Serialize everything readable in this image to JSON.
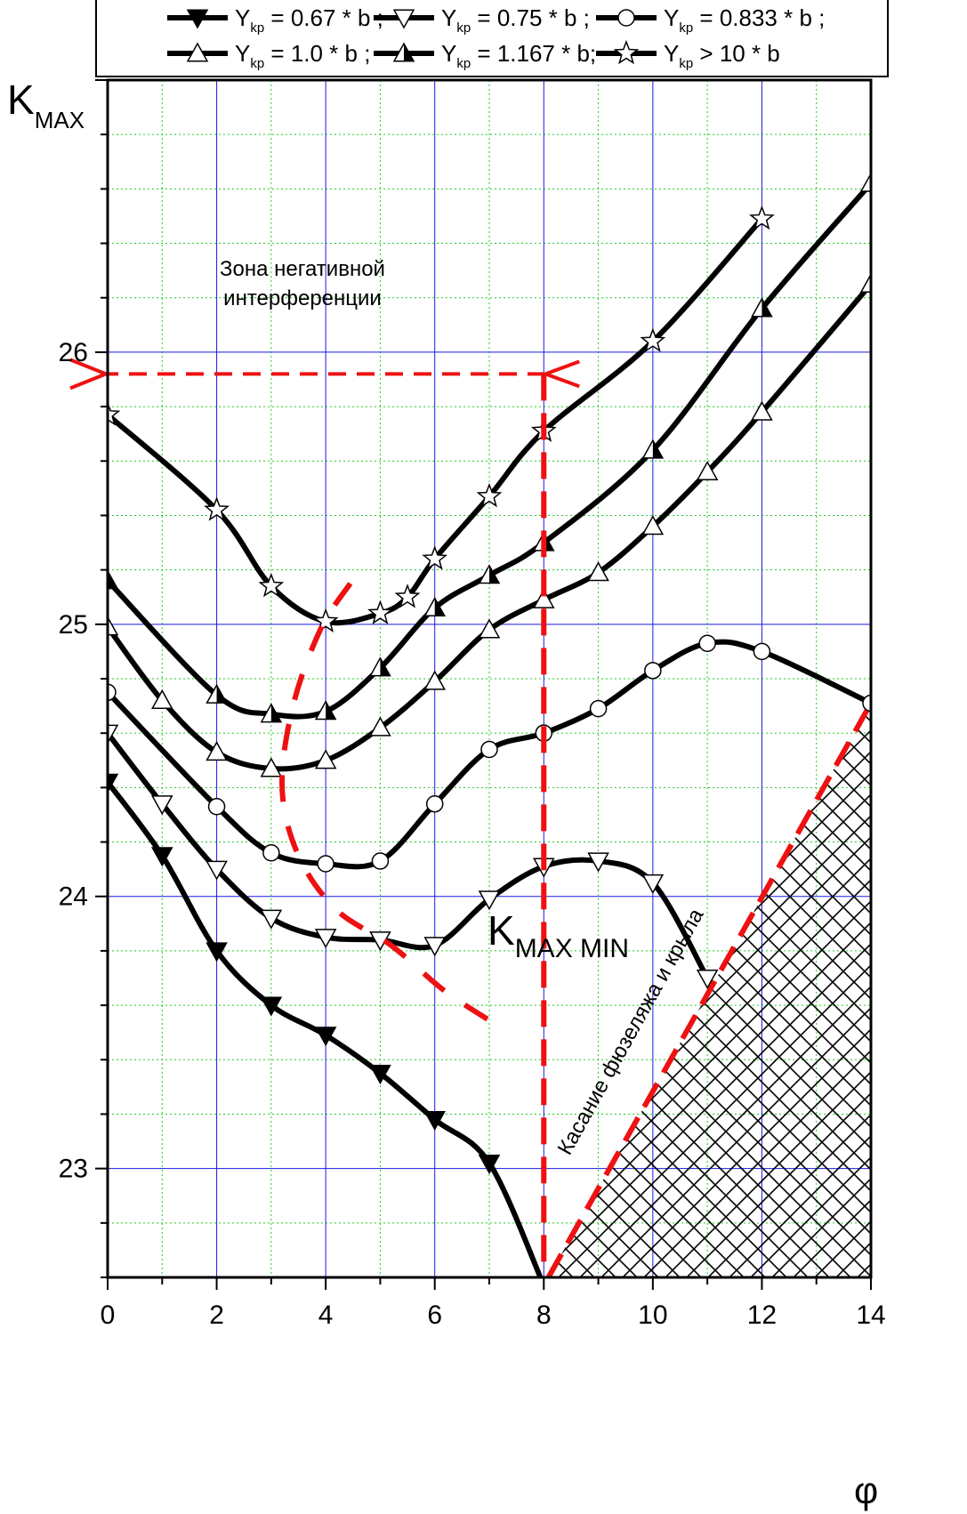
{
  "chart_data": {
    "type": "line",
    "ylabel": "K",
    "ylabel_sub": "MAX",
    "xlabel": "φ",
    "xlim": [
      0,
      14
    ],
    "ylim": [
      22.6,
      27.0
    ],
    "x_ticks": [
      0,
      2,
      4,
      6,
      8,
      10,
      12,
      14
    ],
    "x_tick_labels": [
      "0",
      "2",
      "4",
      "6",
      "8",
      "10",
      "12",
      "14"
    ],
    "y_ticks": [
      23,
      24,
      25,
      26
    ],
    "y_tick_labels": [
      "23",
      "24",
      "25",
      "26"
    ],
    "grid": true,
    "legend_position": "top",
    "series": [
      {
        "name_pre": "Y",
        "name_sub": "kp",
        "name_post": " = 0.67 * b ;",
        "marker": "tri-down-filled",
        "x": [
          0,
          1,
          2,
          3,
          4,
          5,
          6,
          7,
          8
        ],
        "y": [
          24.42,
          24.15,
          23.8,
          23.6,
          23.49,
          23.35,
          23.18,
          23.02,
          22.57
        ]
      },
      {
        "name_pre": "Y",
        "name_sub": "kp",
        "name_post": " = 0.75 * b ;",
        "marker": "tri-down-open",
        "x": [
          0,
          1,
          2,
          3,
          4,
          5,
          6,
          7,
          8,
          9,
          10,
          11
        ],
        "y": [
          24.6,
          24.34,
          24.1,
          23.92,
          23.85,
          23.84,
          23.82,
          23.99,
          24.11,
          24.13,
          24.05,
          23.7
        ]
      },
      {
        "name_pre": "Y",
        "name_sub": "kp",
        "name_post": " = 0.833 * b ;",
        "marker": "circle-open",
        "x": [
          0,
          2,
          3,
          4,
          5,
          6,
          7,
          8,
          9,
          10,
          11,
          12,
          14
        ],
        "y": [
          24.75,
          24.33,
          24.16,
          24.12,
          24.13,
          24.34,
          24.54,
          24.6,
          24.69,
          24.83,
          24.93,
          24.9,
          24.71
        ]
      },
      {
        "name_pre": "Y",
        "name_sub": "kp",
        "name_post": " = 1.0 * b ;",
        "marker": "tri-up-open",
        "x": [
          0,
          1,
          2,
          3,
          4,
          5,
          6,
          7,
          8,
          9,
          10,
          11,
          12,
          14
        ],
        "y": [
          24.99,
          24.72,
          24.53,
          24.47,
          24.5,
          24.62,
          24.79,
          24.98,
          25.09,
          25.19,
          25.36,
          25.56,
          25.78,
          26.25
        ]
      },
      {
        "name_pre": "Y",
        "name_sub": "kp",
        "name_post": " = 1.167 * b;",
        "marker": "tri-up-half",
        "x": [
          0,
          2,
          3,
          4,
          5,
          6,
          7,
          8,
          10,
          12,
          14
        ],
        "y": [
          25.16,
          24.74,
          24.67,
          24.68,
          24.84,
          25.06,
          25.18,
          25.3,
          25.64,
          26.16,
          26.62
        ]
      },
      {
        "name_pre": "Y",
        "name_sub": "kp",
        "name_post": " > 10 * b",
        "marker": "star-open",
        "x": [
          0,
          2,
          3,
          4,
          5,
          5.5,
          6,
          7,
          8,
          10,
          12
        ],
        "y": [
          25.77,
          25.42,
          25.14,
          25.01,
          25.04,
          25.1,
          25.24,
          25.47,
          25.71,
          26.04,
          26.49
        ]
      }
    ],
    "annotations": {
      "zone_line1": "Зона негативной",
      "zone_line2": "интерференции",
      "kmin_main": "K",
      "kmin_sub": "MAX  MIN",
      "contact": "Касание фюзеляжа и крыла",
      "zone_level": 25.92,
      "zone_x_end": 8
    },
    "colors": {
      "curve": "#000000",
      "grid_major": "#1a1ae6",
      "grid_minor": "#22cc22",
      "annotation": "#ee1111"
    }
  }
}
